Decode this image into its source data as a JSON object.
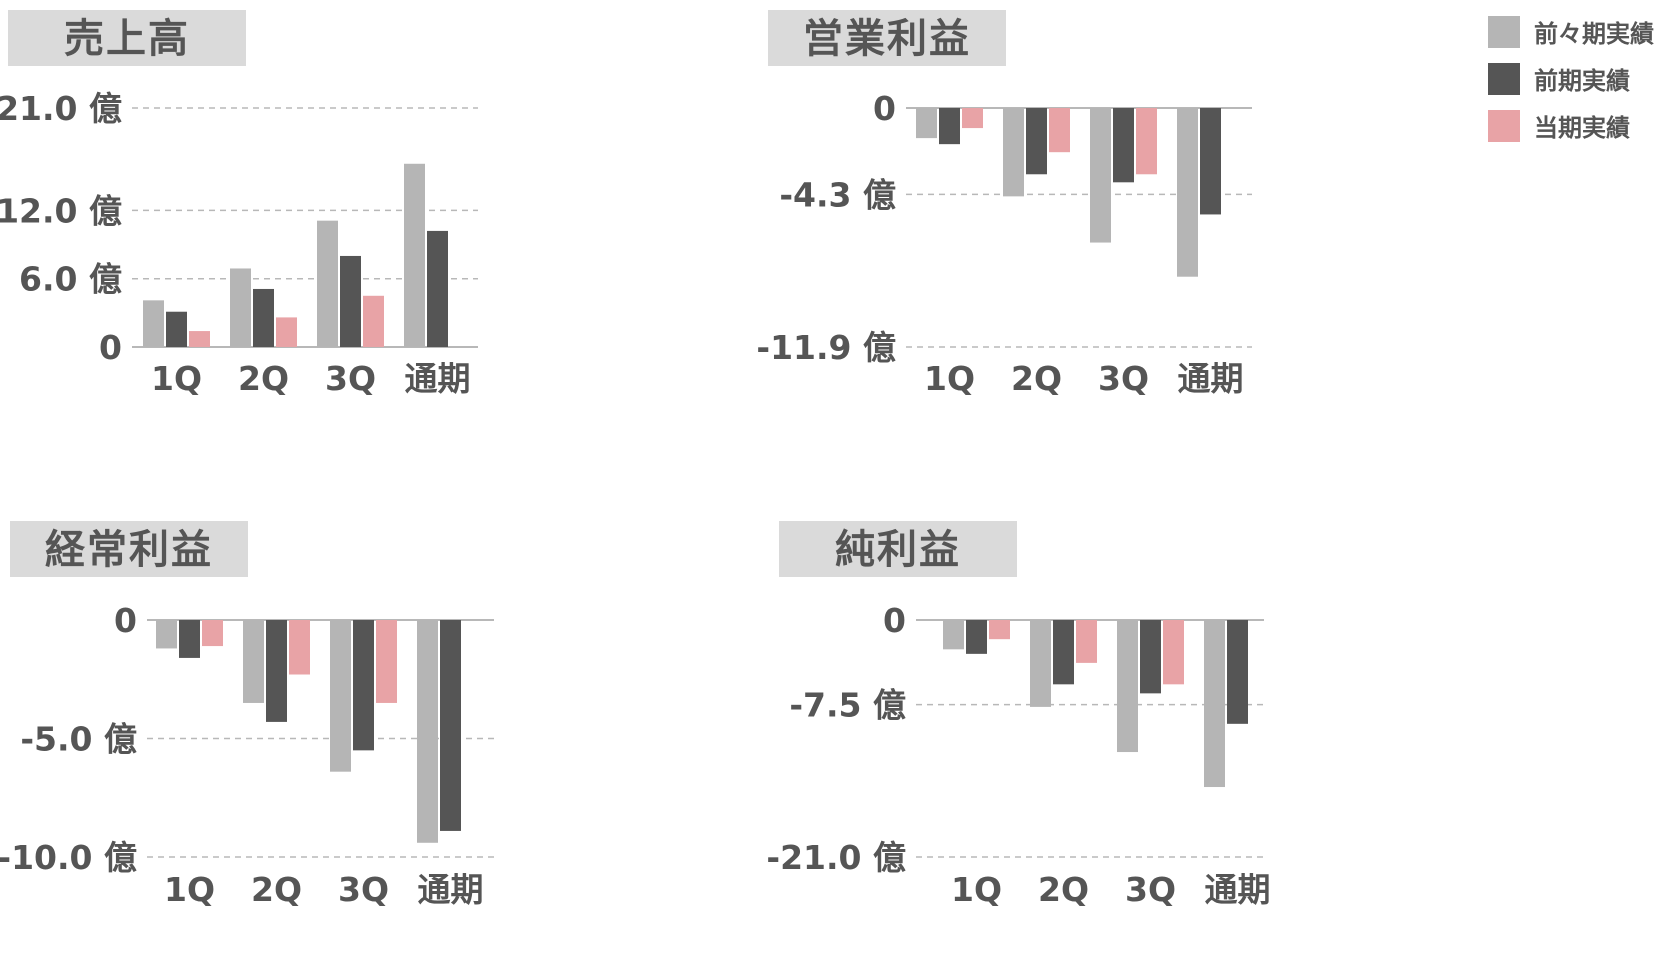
{
  "legend": [
    {
      "label": "前々期実績",
      "color": "#b5b5b5"
    },
    {
      "label": "前期実績",
      "color": "#555555"
    },
    {
      "label": "当期実績",
      "color": "#e8a3a6"
    }
  ],
  "chart_data": [
    {
      "type": "bar",
      "title": "売上高",
      "categories": [
        "1Q",
        "2Q",
        "3Q",
        "通期"
      ],
      "ticks": [
        {
          "value": 21.0,
          "label": "21.0 億"
        },
        {
          "value": 12.0,
          "label": "12.0 億"
        },
        {
          "value": 6.0,
          "label": "6.0 億"
        },
        {
          "value": 0,
          "label": "0"
        }
      ],
      "series": [
        {
          "name": "前々期実績",
          "values": [
            4.1,
            6.9,
            11.1,
            16.1
          ]
        },
        {
          "name": "前期実績",
          "values": [
            3.1,
            5.1,
            8.0,
            10.2
          ]
        },
        {
          "name": "当期実績",
          "values": [
            1.4,
            2.6,
            4.5,
            null
          ]
        }
      ]
    },
    {
      "type": "bar",
      "title": "営業利益",
      "categories": [
        "1Q",
        "2Q",
        "3Q",
        "通期"
      ],
      "ticks": [
        {
          "value": 0,
          "label": "0"
        },
        {
          "value": -4.3,
          "label": "-4.3 億"
        },
        {
          "value": -11.9,
          "label": "-11.9 億"
        }
      ],
      "series": [
        {
          "name": "前々期実績",
          "values": [
            -1.5,
            -4.4,
            -6.7,
            -8.4
          ]
        },
        {
          "name": "前期実績",
          "values": [
            -1.8,
            -3.3,
            -3.7,
            -5.3
          ]
        },
        {
          "name": "当期実績",
          "values": [
            -1.0,
            -2.2,
            -3.3,
            null
          ]
        }
      ]
    },
    {
      "type": "bar",
      "title": "経常利益",
      "categories": [
        "1Q",
        "2Q",
        "3Q",
        "通期"
      ],
      "ticks": [
        {
          "value": 0,
          "label": "0"
        },
        {
          "value": -5.0,
          "label": "-5.0 億"
        },
        {
          "value": -10.0,
          "label": "-10.0 億"
        }
      ],
      "series": [
        {
          "name": "前々期実績",
          "values": [
            -1.2,
            -3.5,
            -6.4,
            -9.4
          ]
        },
        {
          "name": "前期実績",
          "values": [
            -1.6,
            -4.3,
            -5.5,
            -8.9
          ]
        },
        {
          "name": "当期実績",
          "values": [
            -1.1,
            -2.3,
            -3.5,
            null
          ]
        }
      ]
    },
    {
      "type": "bar",
      "title": "純利益",
      "categories": [
        "1Q",
        "2Q",
        "3Q",
        "通期"
      ],
      "ticks": [
        {
          "value": 0,
          "label": "0"
        },
        {
          "value": -7.5,
          "label": "-7.5 億"
        },
        {
          "value": -21.0,
          "label": "-21.0 億"
        }
      ],
      "series": [
        {
          "name": "前々期実績",
          "values": [
            -2.6,
            -7.7,
            -11.7,
            -14.8
          ]
        },
        {
          "name": "前期実績",
          "values": [
            -3.0,
            -5.7,
            -6.5,
            -9.2
          ]
        },
        {
          "name": "当期実績",
          "values": [
            -1.7,
            -3.8,
            -5.7,
            null
          ]
        }
      ]
    }
  ]
}
